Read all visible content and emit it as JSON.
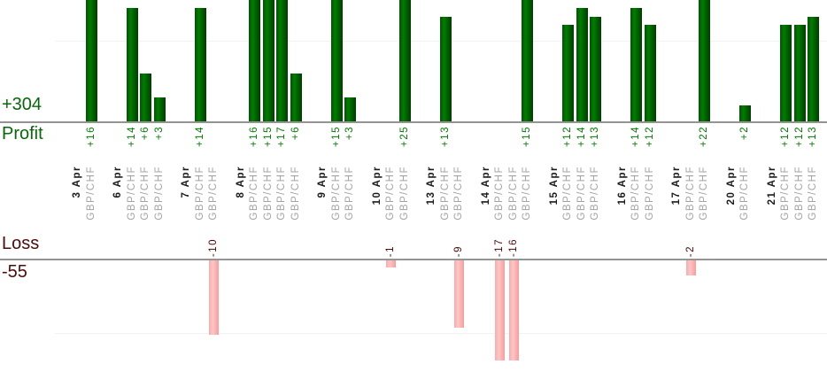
{
  "chart_data": {
    "type": "bar",
    "title": "",
    "instrument": "GBP/CHF",
    "profit_section": {
      "total": "+304",
      "label": "Profit"
    },
    "loss_section": {
      "label": "Loss",
      "total": "-55"
    },
    "gridlines": {
      "profit_units": 10,
      "loss_units": -10
    },
    "axis": {
      "profit_baseline": 0,
      "bars_clipped_above": 15,
      "losses_clipped_below": -14
    },
    "groups": [
      {
        "date": "3 Apr",
        "trades": [
          {
            "symbol": "GBP/CHF",
            "value": 16
          }
        ]
      },
      {
        "date": "6 Apr",
        "trades": [
          {
            "symbol": "GBP/CHF",
            "value": 14
          },
          {
            "symbol": "GBP/CHF",
            "value": 6
          },
          {
            "symbol": "GBP/CHF",
            "value": 3
          }
        ]
      },
      {
        "date": "7 Apr",
        "trades": [
          {
            "symbol": "GBP/CHF",
            "value": 14
          },
          {
            "symbol": "GBP/CHF",
            "value": -10
          }
        ]
      },
      {
        "date": "8 Apr",
        "trades": [
          {
            "symbol": "GBP/CHF",
            "value": 16
          },
          {
            "symbol": "GBP/CHF",
            "value": 15
          },
          {
            "symbol": "GBP/CHF",
            "value": 17
          },
          {
            "symbol": "GBP/CHF",
            "value": 6
          }
        ]
      },
      {
        "date": "9 Apr",
        "trades": [
          {
            "symbol": "GBP/CHF",
            "value": 15
          },
          {
            "symbol": "GBP/CHF",
            "value": 3
          }
        ]
      },
      {
        "date": "10 Apr",
        "trades": [
          {
            "symbol": "GBP/CHF",
            "value": -1
          },
          {
            "symbol": "GBP/CHF",
            "value": 25
          }
        ]
      },
      {
        "date": "13 Apr",
        "trades": [
          {
            "symbol": "GBP/CHF",
            "value": 13
          },
          {
            "symbol": "GBP/CHF",
            "value": -9
          }
        ]
      },
      {
        "date": "14 Apr",
        "trades": [
          {
            "symbol": "GBP/CHF",
            "value": -17
          },
          {
            "symbol": "GBP/CHF",
            "value": -16
          },
          {
            "symbol": "GBP/CHF",
            "value": 15
          }
        ]
      },
      {
        "date": "15 Apr",
        "trades": [
          {
            "symbol": "GBP/CHF",
            "value": 12
          },
          {
            "symbol": "GBP/CHF",
            "value": 14
          },
          {
            "symbol": "GBP/CHF",
            "value": 13
          }
        ]
      },
      {
        "date": "16 Apr",
        "trades": [
          {
            "symbol": "GBP/CHF",
            "value": 14
          },
          {
            "symbol": "GBP/CHF",
            "value": 12
          }
        ]
      },
      {
        "date": "17 Apr",
        "trades": [
          {
            "symbol": "GBP/CHF",
            "value": -2
          },
          {
            "symbol": "GBP/CHF",
            "value": 22
          }
        ]
      },
      {
        "date": "20 Apr",
        "trades": [
          {
            "symbol": "GBP/CHF",
            "value": 2
          }
        ]
      },
      {
        "date": "21 Apr",
        "trades": [
          {
            "symbol": "GBP/CHF",
            "value": 12
          },
          {
            "symbol": "GBP/CHF",
            "value": 12
          },
          {
            "symbol": "GBP/CHF",
            "value": 13
          }
        ]
      }
    ],
    "colors": {
      "profit_bar": "#007e00",
      "loss_bar": "#ff9e9e",
      "profit_text": "#007b00",
      "loss_text": "#4d0808",
      "date_text": "#1c1c1c",
      "symbol_text": "#a3a3a3",
      "axis_line": "#949494",
      "gridline": "#f2f2f2"
    }
  }
}
